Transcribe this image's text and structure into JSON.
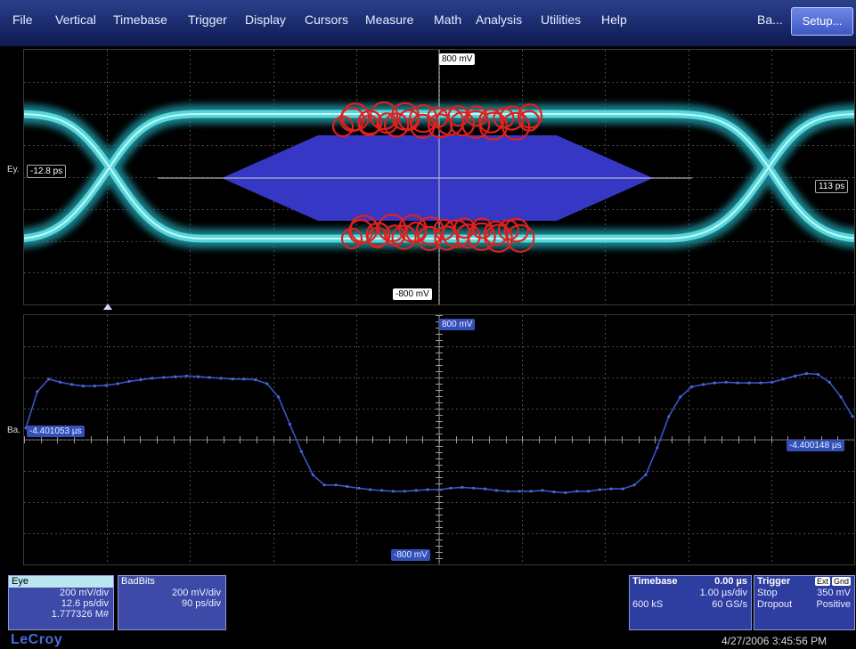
{
  "menu": {
    "items": [
      "File",
      "Vertical",
      "Timebase",
      "Trigger",
      "Display",
      "Cursors",
      "Measure",
      "Math",
      "Analysis",
      "Utilities",
      "Help"
    ],
    "ba_label": "Ba...",
    "setup_label": "Setup..."
  },
  "eye_grid": {
    "top_level": "800 mV",
    "bottom_level": "-800 mV",
    "left_time": "-12.8 ps",
    "right_time": "113 ps",
    "side_label": "Ey."
  },
  "bit_grid": {
    "top_level": "800 mV",
    "bottom_level": "-800 mV",
    "left_time": "-4.401053 µs",
    "right_time": "-4.400148 µs",
    "side_label": "Ba."
  },
  "eye_panel": {
    "title": "Eye",
    "vdiv": "200 mV/div",
    "tdiv": "12.6 ps/div",
    "count": "1.777326 M#"
  },
  "bad_panel": {
    "title": "BadBits",
    "vdiv": "200 mV/div",
    "tdiv": "90 ps/div"
  },
  "timebase_panel": {
    "title": "Timebase",
    "delay": "0.00 µs",
    "tdiv": "1.00 µs/div",
    "samples": "600 kS",
    "rate": "60 GS/s"
  },
  "trigger_panel": {
    "title": "Trigger",
    "badge1": "Ext",
    "badge2": "Gnd",
    "mode": "Stop",
    "level": "350 mV",
    "type": "Dropout",
    "slope": "Positive"
  },
  "brand": "LeCroy",
  "timestamp": "4/27/2006 3:45:56 PM",
  "colors": {
    "menu_bg": "#1a2a6c",
    "eye_trace": "#4fe0e6",
    "mask": "#3a3ad0",
    "violation": "#e02020",
    "waveform": "#3550c0"
  },
  "waveform_samples": [
    0.15,
    0.62,
    0.78,
    0.74,
    0.71,
    0.69,
    0.69,
    0.7,
    0.72,
    0.75,
    0.77,
    0.79,
    0.8,
    0.81,
    0.82,
    0.81,
    0.8,
    0.79,
    0.78,
    0.78,
    0.77,
    0.72,
    0.55,
    0.2,
    -0.15,
    -0.45,
    -0.58,
    -0.58,
    -0.6,
    -0.62,
    -0.64,
    -0.65,
    -0.66,
    -0.66,
    -0.65,
    -0.64,
    -0.64,
    -0.62,
    -0.61,
    -0.62,
    -0.63,
    -0.65,
    -0.66,
    -0.66,
    -0.66,
    -0.65,
    -0.67,
    -0.68,
    -0.66,
    -0.66,
    -0.64,
    -0.63,
    -0.63,
    -0.58,
    -0.45,
    -0.1,
    0.3,
    0.55,
    0.68,
    0.71,
    0.73,
    0.74,
    0.73,
    0.73,
    0.73,
    0.74,
    0.78,
    0.82,
    0.85,
    0.84,
    0.74,
    0.55,
    0.3
  ]
}
